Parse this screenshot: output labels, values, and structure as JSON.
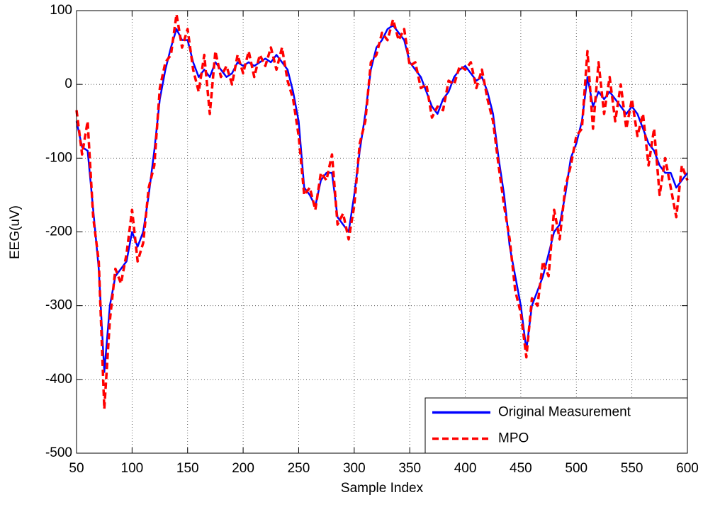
{
  "chart_data": {
    "type": "line",
    "xlabel": "Sample Index",
    "ylabel": "EEG(uV)",
    "x": [
      50,
      55,
      60,
      65,
      70,
      75,
      80,
      85,
      90,
      95,
      100,
      105,
      110,
      115,
      120,
      125,
      130,
      135,
      140,
      145,
      150,
      155,
      160,
      165,
      170,
      175,
      180,
      185,
      190,
      195,
      200,
      205,
      210,
      215,
      220,
      225,
      230,
      235,
      240,
      245,
      250,
      255,
      260,
      265,
      270,
      275,
      280,
      285,
      290,
      295,
      300,
      305,
      310,
      315,
      320,
      325,
      330,
      335,
      340,
      345,
      350,
      355,
      360,
      365,
      370,
      375,
      380,
      385,
      390,
      395,
      400,
      405,
      410,
      415,
      420,
      425,
      430,
      435,
      440,
      445,
      450,
      455,
      460,
      465,
      470,
      475,
      480,
      485,
      490,
      495,
      500,
      505,
      510,
      515,
      520,
      525,
      530,
      535,
      540,
      545,
      550,
      555,
      560,
      565,
      570,
      575,
      580,
      585,
      590,
      595,
      600
    ],
    "series": [
      {
        "name": "Original Measurement",
        "color": "#0000ff",
        "linestyle": "solid",
        "values": [
          -50,
          -85,
          -90,
          -170,
          -250,
          -390,
          -300,
          -260,
          -250,
          -240,
          -200,
          -220,
          -200,
          -150,
          -90,
          -20,
          20,
          50,
          75,
          60,
          60,
          30,
          10,
          20,
          10,
          30,
          20,
          10,
          15,
          30,
          25,
          30,
          25,
          30,
          35,
          30,
          40,
          30,
          20,
          -10,
          -50,
          -140,
          -150,
          -165,
          -130,
          -120,
          -120,
          -180,
          -190,
          -200,
          -150,
          -90,
          -40,
          20,
          50,
          60,
          75,
          80,
          70,
          60,
          30,
          20,
          10,
          -10,
          -30,
          -40,
          -20,
          -10,
          10,
          20,
          25,
          15,
          5,
          10,
          -10,
          -40,
          -100,
          -150,
          -220,
          -260,
          -300,
          -360,
          -300,
          -280,
          -260,
          -230,
          -200,
          -190,
          -150,
          -100,
          -80,
          -50,
          10,
          -30,
          -10,
          -20,
          -10,
          -20,
          -30,
          -40,
          -30,
          -40,
          -60,
          -80,
          -90,
          -110,
          -120,
          -120,
          -140,
          -130,
          -120
        ]
      },
      {
        "name": "MPO",
        "color": "#ff0000",
        "linestyle": "dashed",
        "values": [
          -35,
          -95,
          -50,
          -180,
          -240,
          -440,
          -320,
          -250,
          -270,
          -230,
          -170,
          -240,
          -215,
          -140,
          -110,
          -5,
          30,
          40,
          95,
          50,
          75,
          20,
          -10,
          40,
          -40,
          45,
          10,
          25,
          0,
          40,
          15,
          45,
          10,
          40,
          25,
          50,
          20,
          50,
          5,
          -20,
          -70,
          -150,
          -140,
          -170,
          -120,
          -130,
          -95,
          -190,
          -175,
          -210,
          -165,
          -80,
          -50,
          30,
          40,
          70,
          60,
          88,
          60,
          75,
          25,
          30,
          -5,
          0,
          -45,
          -30,
          -35,
          5,
          0,
          25,
          20,
          30,
          -5,
          20,
          -20,
          -50,
          -110,
          -165,
          -210,
          -280,
          -310,
          -370,
          -290,
          -300,
          -240,
          -260,
          -170,
          -210,
          -140,
          -110,
          -70,
          -60,
          45,
          -60,
          30,
          -40,
          10,
          -50,
          0,
          -60,
          -20,
          -70,
          -40,
          -110,
          -60,
          -150,
          -100,
          -140,
          -180,
          -110,
          -130
        ]
      }
    ],
    "xlim": [
      50,
      600
    ],
    "ylim": [
      -500,
      100
    ],
    "xticks": [
      50,
      100,
      150,
      200,
      250,
      300,
      350,
      400,
      450,
      500,
      550,
      600
    ],
    "yticks": [
      -500,
      -400,
      -300,
      -200,
      -100,
      0,
      100
    ],
    "grid": true,
    "legend": "lower right"
  }
}
